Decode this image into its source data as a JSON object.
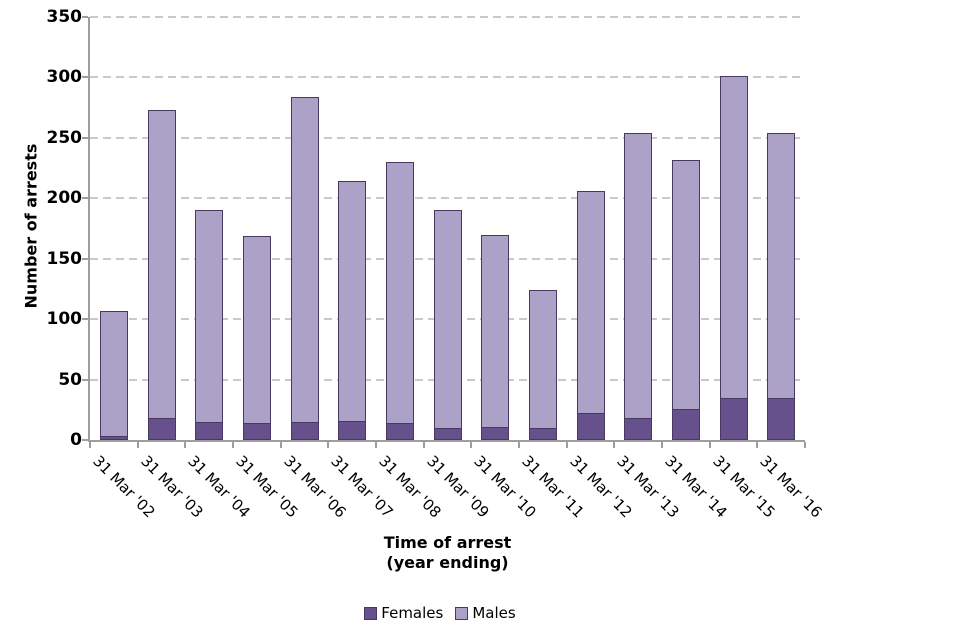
{
  "chart_data": {
    "type": "bar",
    "stacked": true,
    "categories": [
      "31 Mar '02",
      "31 Mar '03",
      "31 Mar '04",
      "31 Mar '05",
      "31 Mar '06",
      "31 Mar '07",
      "31 Mar '08",
      "31 Mar '09",
      "31 Mar '10",
      "31 Mar '11",
      "31 Mar '12",
      "31 Mar '13",
      "31 Mar '14",
      "31 Mar '15",
      "31 Mar '16"
    ],
    "series": [
      {
        "name": "Females",
        "color": "#66518C",
        "values": [
          3,
          18,
          15,
          14,
          15,
          16,
          14,
          10,
          11,
          10,
          22,
          18,
          26,
          35,
          35
        ]
      },
      {
        "name": "Males",
        "color": "#ACA2C8",
        "values": [
          104,
          255,
          175,
          155,
          269,
          198,
          216,
          180,
          159,
          114,
          184,
          236,
          206,
          266,
          219
        ]
      }
    ],
    "totals": [
      107,
      273,
      190,
      169,
      284,
      214,
      230,
      190,
      170,
      124,
      206,
      254,
      232,
      301,
      254
    ],
    "title": "",
    "xlabel": "Time of arrest (year ending)",
    "xlabel_line1": "Time of arrest",
    "xlabel_line2": "(year ending)",
    "ylabel": "Number of arrests",
    "ylim": [
      0,
      350
    ],
    "ytick_labels": [
      "0",
      "50",
      "100",
      "150",
      "200",
      "250",
      "300",
      "350"
    ],
    "grid": "horizontal dashed",
    "legend_position": "bottom center"
  },
  "colors": {
    "bar_border": "#473960",
    "gridline": "#c9c9c9",
    "axis_line": "#9e9e9e",
    "text": "#000000",
    "background": "#ffffff"
  }
}
